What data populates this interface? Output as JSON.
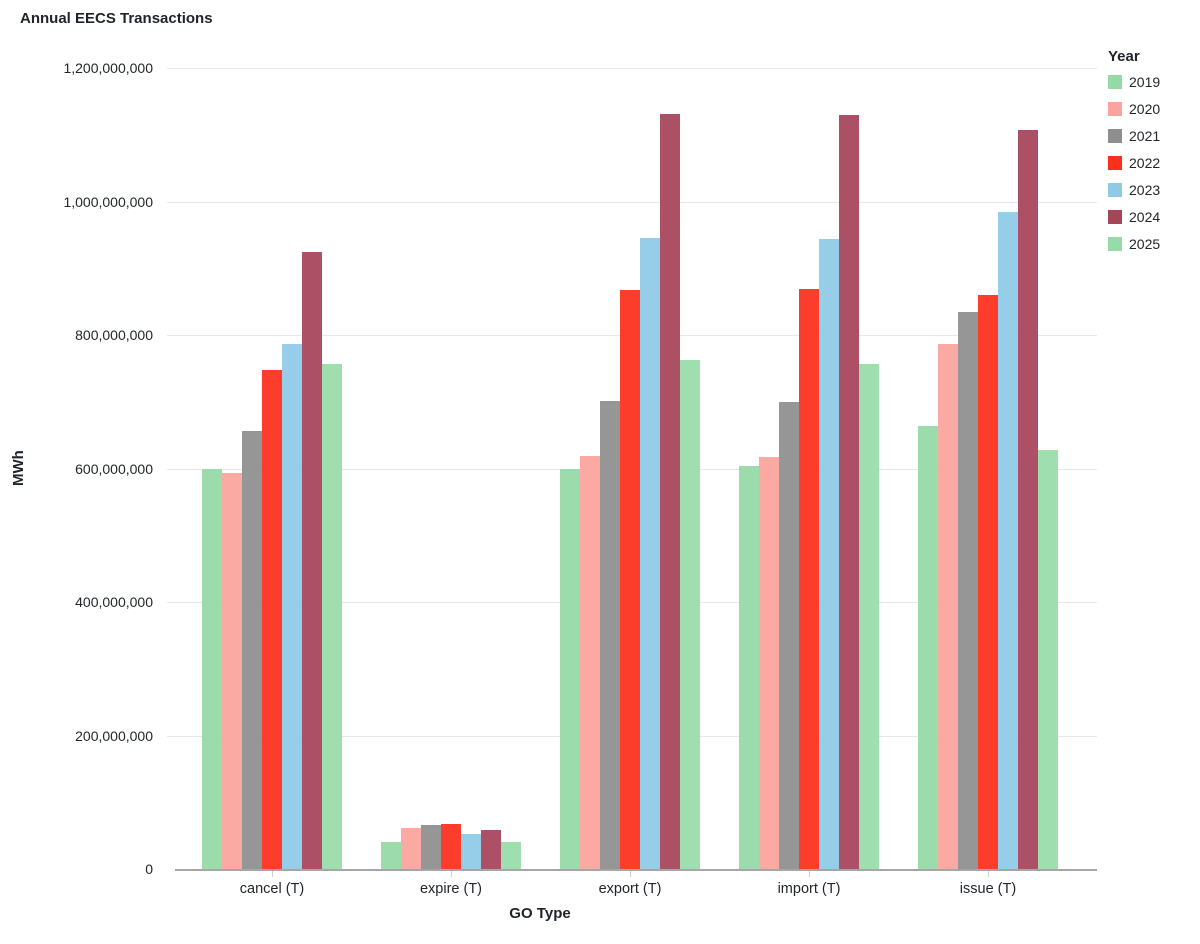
{
  "title": "Annual EECS Transactions",
  "axes": {
    "y_title": "MWh",
    "x_title": "GO Type"
  },
  "legend": {
    "title": "Year"
  },
  "chart_data": {
    "type": "bar",
    "title": "Annual EECS Transactions",
    "xlabel": "GO Type",
    "ylabel": "MWh",
    "categories": [
      "cancel (T)",
      "expire (T)",
      "export (T)",
      "import (T)",
      "issue (T)"
    ],
    "series": [
      {
        "name": "2019",
        "color": "#94D9A6",
        "values": [
          600000000,
          41000000,
          600000000,
          603000000,
          663000000
        ]
      },
      {
        "name": "2020",
        "color": "#FBA39C",
        "values": [
          593000000,
          62000000,
          618000000,
          617000000,
          786000000
        ]
      },
      {
        "name": "2021",
        "color": "#8E8E8E",
        "values": [
          656000000,
          66000000,
          701000000,
          699000000,
          834000000
        ]
      },
      {
        "name": "2022",
        "color": "#FC2E1C",
        "values": [
          748000000,
          67000000,
          868000000,
          869000000,
          860000000
        ]
      },
      {
        "name": "2023",
        "color": "#8EC9E6",
        "values": [
          786000000,
          53000000,
          946000000,
          944000000,
          985000000
        ]
      },
      {
        "name": "2024",
        "color": "#A64459",
        "values": [
          924000000,
          58000000,
          1131000000,
          1129000000,
          1107000000
        ]
      },
      {
        "name": "2025",
        "color": "#97DBA9",
        "values": [
          756000000,
          40000000,
          763000000,
          757000000,
          628000000
        ]
      }
    ],
    "ylim": [
      0,
      1200000000
    ],
    "ytick_step": 200000000,
    "y_tick_labels": [
      "0",
      "200,000,000",
      "400,000,000",
      "600,000,000",
      "800,000,000",
      "1,000,000,000",
      "1,200,000,000"
    ],
    "grid": true,
    "legend_title": "Year",
    "legend_position": "right"
  }
}
